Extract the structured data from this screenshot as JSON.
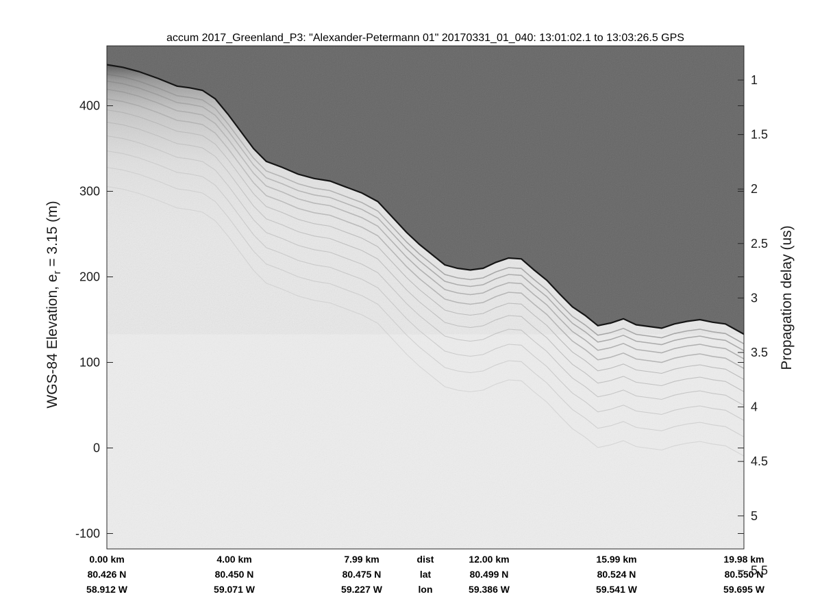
{
  "chart_data": {
    "type": "radargram",
    "title": "accum 2017_Greenland_P3: \"Alexander-Petermann 01\"  20170331_01_040: 13:01:02.1 to 13:03:26.5 GPS",
    "ylabel_left_main": "WGS-84 Elevation, e",
    "ylabel_left_sub": "r",
    "ylabel_left_tail": " = 3.15 (m)",
    "ylabel_right": "Propagation delay (us)",
    "left_axis": {
      "range": [
        -118,
        470
      ],
      "ticks": [
        400,
        300,
        200,
        100,
        0,
        -100
      ],
      "tick_labels": [
        "400",
        "300",
        "200",
        "100",
        "0",
        "-100"
      ]
    },
    "right_axis": {
      "ticks": [
        1,
        1.5,
        2,
        2.5,
        3,
        3.5,
        4,
        4.5,
        5,
        5.5
      ],
      "tick_labels": [
        "1",
        "1.5",
        "2",
        "2.5",
        "3",
        "3.5",
        "4",
        "4.5",
        "5",
        "5.5"
      ]
    },
    "x_range_km": [
      0,
      19.98
    ],
    "bottom_axis": {
      "row_labels": [
        "dist",
        "lat",
        "lon"
      ],
      "columns": [
        {
          "dist": "0.00 km",
          "lat": "80.426 N",
          "lon": "58.912 W"
        },
        {
          "dist": "4.00 km",
          "lat": "80.450 N",
          "lon": "59.071 W"
        },
        {
          "dist": "7.99 km",
          "lat": "80.475 N",
          "lon": "59.227 W"
        },
        {
          "dist": "12.00 km",
          "lat": "80.499 N",
          "lon": "59.386 W"
        },
        {
          "dist": "15.99 km",
          "lat": "80.524 N",
          "lon": "59.541 W"
        },
        {
          "dist": "19.98 km",
          "lat": "80.550 N",
          "lon": "59.695 W"
        }
      ]
    },
    "surface_elevation_m": {
      "x_km": [
        0,
        0.5,
        1.0,
        1.6,
        2.2,
        2.6,
        3.0,
        3.4,
        3.8,
        4.2,
        4.6,
        5.0,
        5.5,
        6.0,
        6.5,
        7.0,
        7.5,
        8.0,
        8.5,
        9.0,
        9.4,
        9.8,
        10.2,
        10.6,
        11.0,
        11.4,
        11.8,
        12.2,
        12.6,
        13.0,
        13.4,
        13.8,
        14.2,
        14.6,
        15.0,
        15.4,
        15.8,
        16.2,
        16.6,
        17.0,
        17.4,
        17.8,
        18.2,
        18.6,
        19.0,
        19.4,
        19.98
      ],
      "elev": [
        448,
        445,
        440,
        432,
        423,
        421,
        418,
        408,
        390,
        370,
        350,
        335,
        328,
        320,
        315,
        312,
        305,
        298,
        288,
        268,
        252,
        238,
        226,
        214,
        210,
        208,
        210,
        217,
        222,
        221,
        208,
        196,
        180,
        165,
        155,
        143,
        146,
        151,
        144,
        142,
        140,
        145,
        148,
        150,
        147,
        145,
        133
      ]
    },
    "colors": {
      "air": "#626262",
      "ice_dark": "#4a4a4a",
      "ice_light": "#ededed",
      "surface": "#151515"
    }
  }
}
